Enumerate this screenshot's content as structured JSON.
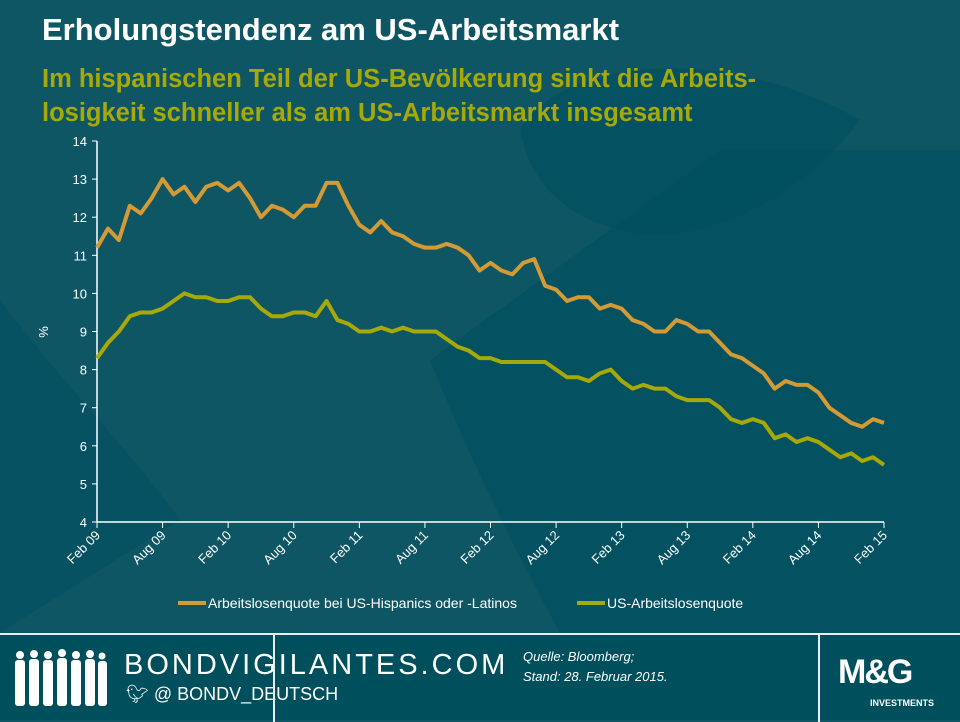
{
  "header": {
    "title": "Erholungstendenz am US-Arbeitsmarkt",
    "subtitle_line1": "Im hispanischen Teil der US-Bevölkerung sinkt die Arbeits-",
    "subtitle_line2": "losigkeit schneller als am US-Arbeitsmarkt insgesamt"
  },
  "footer": {
    "site": "BONDVIGILANTES.COM",
    "twitter": "@ BONDV_DEUTSCH",
    "source_line1": "Quelle: Bloomberg;",
    "source_line2": "Stand: 28. Februar 2015.",
    "logo_text": "M&G",
    "logo_sub": "INVESTMENTS"
  },
  "colors": {
    "background": "#0f5664",
    "hispanic": "#d39a35",
    "us": "#a6a908"
  },
  "chart_data": {
    "type": "line",
    "ylabel": "%",
    "ylim": [
      4,
      14
    ],
    "yticks": [
      4,
      5,
      6,
      7,
      8,
      9,
      10,
      11,
      12,
      13,
      14
    ],
    "xticks": [
      "Feb 09",
      "Aug 09",
      "Feb 10",
      "Aug 10",
      "Feb 11",
      "Aug 11",
      "Feb 12",
      "Aug 12",
      "Feb 13",
      "Aug 13",
      "Feb 14",
      "Aug 14",
      "Feb 15"
    ],
    "x_start": "Feb 09",
    "x_end": "Feb 15",
    "frequency": "monthly",
    "series": [
      {
        "name": "Arbeitslosenquote bei US-Hispanics oder -Latinos",
        "color": "#d39a35",
        "values": [
          11.2,
          11.7,
          11.4,
          12.3,
          12.1,
          12.5,
          13.0,
          12.6,
          12.8,
          12.4,
          12.8,
          12.9,
          12.7,
          12.9,
          12.5,
          12.0,
          12.3,
          12.2,
          12.0,
          12.3,
          12.3,
          12.9,
          12.9,
          12.3,
          11.8,
          11.6,
          11.9,
          11.6,
          11.5,
          11.3,
          11.2,
          11.2,
          11.3,
          11.2,
          11.0,
          10.6,
          10.8,
          10.6,
          10.5,
          10.8,
          10.9,
          10.2,
          10.1,
          9.8,
          9.9,
          9.9,
          9.6,
          9.7,
          9.6,
          9.3,
          9.2,
          9.0,
          9.0,
          9.3,
          9.2,
          9.0,
          9.0,
          8.7,
          8.4,
          8.3,
          8.1,
          7.9,
          7.5,
          7.7,
          7.6,
          7.6,
          7.4,
          7.0,
          6.8,
          6.6,
          6.5,
          6.7,
          6.6
        ]
      },
      {
        "name": "US-Arbeitslosenquote",
        "color": "#a6a908",
        "values": [
          8.3,
          8.7,
          9.0,
          9.4,
          9.5,
          9.5,
          9.6,
          9.8,
          10.0,
          9.9,
          9.9,
          9.8,
          9.8,
          9.9,
          9.9,
          9.6,
          9.4,
          9.4,
          9.5,
          9.5,
          9.4,
          9.8,
          9.3,
          9.2,
          9.0,
          9.0,
          9.1,
          9.0,
          9.1,
          9.0,
          9.0,
          9.0,
          8.8,
          8.6,
          8.5,
          8.3,
          8.3,
          8.2,
          8.2,
          8.2,
          8.2,
          8.2,
          8.0,
          7.8,
          7.8,
          7.7,
          7.9,
          8.0,
          7.7,
          7.5,
          7.6,
          7.5,
          7.5,
          7.3,
          7.2,
          7.2,
          7.2,
          7.0,
          6.7,
          6.6,
          6.7,
          6.6,
          6.2,
          6.3,
          6.1,
          6.2,
          6.1,
          5.9,
          5.7,
          5.8,
          5.6,
          5.7,
          5.5
        ]
      }
    ],
    "legend": "bottom",
    "grid": false
  }
}
